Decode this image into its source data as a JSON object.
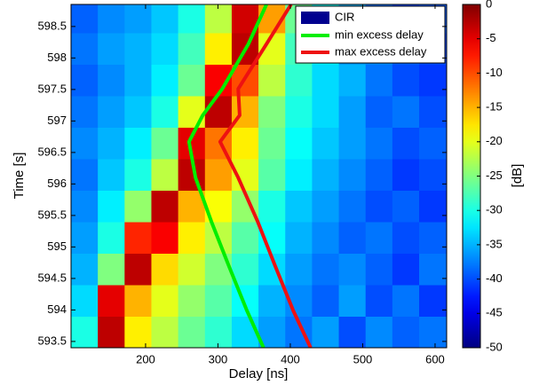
{
  "chart_data": {
    "type": "heatmap",
    "xlabel": "Delay [ns]",
    "ylabel": "Time [s]",
    "colorbar_label": "[dB]",
    "colormap": "jet",
    "xlim": [
      97,
      616
    ],
    "xticks": [
      200,
      300,
      400,
      500,
      600
    ],
    "ylim": [
      593.4,
      598.85
    ],
    "yticks": [
      593.5,
      594,
      594.5,
      595,
      595.5,
      596,
      596.5,
      597,
      597.5,
      598,
      598.5
    ],
    "zlim": [
      -50,
      0
    ],
    "zticks": [
      0,
      -5,
      -10,
      -15,
      -20,
      -25,
      -30,
      -35,
      -40,
      -45,
      -50
    ],
    "heatmap_name": "CIR",
    "heatmap_legend_color": "#00008f",
    "legend": "upper right",
    "x_bins": [
      97,
      134,
      171,
      208,
      245,
      282,
      319,
      356,
      393,
      430,
      467,
      504,
      541,
      578,
      615
    ],
    "y_bins": [
      593.4,
      593.9,
      594.4,
      594.9,
      595.4,
      595.9,
      596.4,
      596.9,
      597.4,
      597.9,
      598.4,
      598.85
    ],
    "z": [
      [
        -30,
        -3,
        -18,
        -22,
        -26,
        -29,
        -33,
        -36,
        -38,
        -36,
        -40,
        -37,
        -39,
        -38
      ],
      [
        -33,
        -5,
        -15,
        -20,
        -24,
        -27,
        -31,
        -35,
        -37,
        -39,
        -36,
        -40,
        -38,
        -41
      ],
      [
        -35,
        -25,
        -3,
        -17,
        -21,
        -25,
        -29,
        -33,
        -36,
        -38,
        -37,
        -39,
        -41,
        -38
      ],
      [
        -36,
        -30,
        -8,
        -6,
        -18,
        -22,
        -27,
        -31,
        -35,
        -37,
        -39,
        -38,
        -40,
        -39
      ],
      [
        -37,
        -32,
        -24,
        -3,
        -15,
        -19,
        -24,
        -30,
        -34,
        -36,
        -38,
        -40,
        -39,
        -41
      ],
      [
        -38,
        -34,
        -30,
        -22,
        -3,
        -14,
        -20,
        -27,
        -32,
        -35,
        -37,
        -39,
        -41,
        -40
      ],
      [
        -37,
        -35,
        -32,
        -26,
        -5,
        -12,
        -18,
        -26,
        -31,
        -34,
        -36,
        -38,
        -40,
        -39
      ],
      [
        -38,
        -36,
        -34,
        -30,
        -20,
        -3,
        -15,
        -25,
        -30,
        -33,
        -36,
        -39,
        -38,
        -40
      ],
      [
        -39,
        -37,
        -35,
        -32,
        -26,
        -6,
        -10,
        -22,
        -29,
        -33,
        -35,
        -38,
        -40,
        -41
      ],
      [
        -38,
        -36,
        -35,
        -33,
        -28,
        -18,
        -3,
        -20,
        -28,
        -32,
        -36,
        -37,
        -39,
        -40
      ],
      [
        -39,
        -37,
        -36,
        -34,
        -30,
        -22,
        -4,
        -14,
        -26,
        -31,
        -35,
        -38,
        -40,
        -39
      ]
    ],
    "series": [
      {
        "name": "min excess delay",
        "color": "#00ee00",
        "x": [
          367,
          342,
          306,
          279,
          260,
          269,
          291,
          315,
          340,
          363
        ],
        "values": [
          598.85,
          598.22,
          597.51,
          597.09,
          596.67,
          596.1,
          595.4,
          594.7,
          593.99,
          593.4
        ]
      },
      {
        "name": "max excess delay",
        "color": "#ee1111",
        "x": [
          401,
          367,
          328,
          330,
          303,
          328,
          355,
          379,
          404,
          428
        ],
        "values": [
          598.85,
          598.22,
          597.51,
          597.09,
          596.67,
          596.1,
          595.4,
          594.7,
          593.99,
          593.4
        ]
      }
    ]
  }
}
